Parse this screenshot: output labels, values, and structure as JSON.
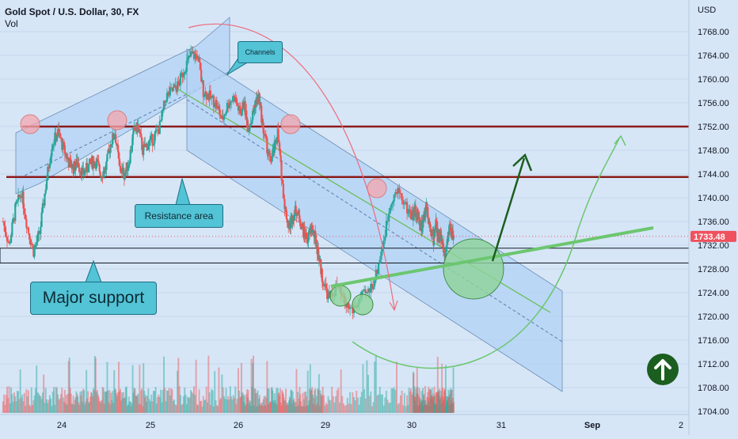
{
  "header": {
    "symbol": "Gold Spot / U.S. Dollar, 30, FX",
    "indicator": "Vol"
  },
  "price_axis": {
    "currency": "USD",
    "last_price": "1733.48",
    "last_price_color": "#f0515e"
  },
  "annotations": {
    "channels": "Channels",
    "resistance": "Resistance area",
    "support": "Major support"
  },
  "colors": {
    "background": "#d6e6f7",
    "up_candle": "#26a69a",
    "down_candle": "#ef5350",
    "resistance_line": "#8b1a1a",
    "channel_fill": "#b3d3f5",
    "callout": "#53c3d6",
    "arrow_green": "#1b5e20"
  },
  "chart_data": {
    "type": "candlestick",
    "title": "Gold Spot / U.S. Dollar, 30, FX",
    "interval": "30",
    "yaxis": {
      "label": "USD",
      "range": [
        1703,
        1771
      ],
      "ticks": [
        1704,
        1708,
        1712,
        1716,
        1720,
        1724,
        1728,
        1732,
        1736,
        1740,
        1744,
        1748,
        1752,
        1756,
        1760,
        1764,
        1768
      ]
    },
    "xaxis": {
      "tick_labels": [
        "24",
        "25",
        "26",
        "29",
        "30",
        "31",
        "Sep",
        "2"
      ]
    },
    "price_path": [
      [
        "23",
        1736
      ],
      [
        "23",
        1732
      ],
      [
        "23",
        1738
      ],
      [
        "23",
        1741
      ],
      [
        "23",
        1735
      ],
      [
        "23",
        1731
      ],
      [
        "23",
        1734
      ],
      [
        "23",
        1742
      ],
      [
        "23",
        1749
      ],
      [
        "23",
        1751
      ],
      [
        "24",
        1748
      ],
      [
        "24",
        1746
      ],
      [
        "24",
        1745
      ],
      [
        "24",
        1746
      ],
      [
        "24",
        1744
      ],
      [
        "24",
        1745
      ],
      [
        "24",
        1746
      ],
      [
        "24",
        1746
      ],
      [
        "24",
        1744
      ],
      [
        "24",
        1745
      ],
      [
        "24",
        1749
      ],
      [
        "24",
        1751
      ],
      [
        "24",
        1745
      ],
      [
        "24",
        1744
      ],
      [
        "24",
        1746
      ],
      [
        "24",
        1751
      ],
      [
        "24",
        1752
      ],
      [
        "24",
        1748
      ],
      [
        "24",
        1749
      ],
      [
        "25",
        1750
      ],
      [
        "25",
        1752
      ],
      [
        "25",
        1757
      ],
      [
        "25",
        1758
      ],
      [
        "25",
        1759
      ],
      [
        "25",
        1762
      ],
      [
        "25",
        1764
      ],
      [
        "25",
        1764
      ],
      [
        "25",
        1758
      ],
      [
        "25",
        1757
      ],
      [
        "25",
        1756
      ],
      [
        "25",
        1753
      ],
      [
        "25",
        1756
      ],
      [
        "25",
        1757
      ],
      [
        "26",
        1754
      ],
      [
        "26",
        1756
      ],
      [
        "26",
        1752
      ],
      [
        "26",
        1753
      ],
      [
        "26",
        1756
      ],
      [
        "26",
        1757
      ],
      [
        "26",
        1752
      ],
      [
        "26",
        1749
      ],
      [
        "26",
        1746
      ],
      [
        "26",
        1748
      ],
      [
        "26",
        1751
      ],
      [
        "26",
        1744
      ],
      [
        "26",
        1738
      ],
      [
        "26",
        1735
      ],
      [
        "26",
        1737
      ],
      [
        "26",
        1738
      ],
      [
        "26",
        1736
      ],
      [
        "26",
        1734
      ],
      [
        "26",
        1733
      ],
      [
        "26",
        1735
      ],
      [
        "26",
        1733
      ],
      [
        "26",
        1730
      ],
      [
        "26",
        1726
      ],
      [
        "29",
        1723
      ],
      [
        "29",
        1725
      ],
      [
        "29",
        1722
      ],
      [
        "29",
        1721
      ],
      [
        "29",
        1723
      ],
      [
        "29",
        1724
      ],
      [
        "29",
        1727
      ],
      [
        "29",
        1733
      ],
      [
        "29",
        1740
      ],
      [
        "29",
        1741
      ],
      [
        "29",
        1738
      ],
      [
        "30",
        1737
      ],
      [
        "30",
        1738
      ],
      [
        "30",
        1737
      ],
      [
        "30",
        1736
      ],
      [
        "30",
        1735
      ],
      [
        "30",
        1737
      ],
      [
        "30",
        1739
      ],
      [
        "30",
        1736
      ],
      [
        "30",
        1735
      ],
      [
        "30",
        1733
      ],
      [
        "30",
        1736
      ],
      [
        "30",
        1733
      ],
      [
        "30",
        1734
      ],
      [
        "30",
        1732
      ],
      [
        "30",
        1730
      ],
      [
        "30",
        1733
      ],
      [
        "30",
        1735
      ],
      [
        "30",
        1734
      ],
      [
        "30",
        1733.48
      ]
    ],
    "resistance_levels": [
      1752,
      1743.5
    ],
    "support_zone": [
      1729,
      1731.5
    ],
    "volume": {
      "label": "Vol"
    }
  }
}
